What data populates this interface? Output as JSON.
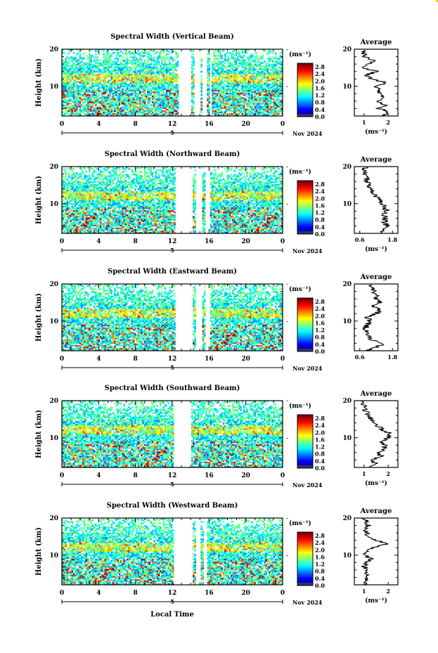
{
  "chart_data": [
    {
      "type": "heatmap",
      "title": "Spectral Width (Vertical Beam)",
      "ylabel": "Height (km)",
      "xlabel": "",
      "x_ticks": [
        "0",
        "4",
        "8",
        "12",
        "16",
        "20",
        "0"
      ],
      "date_marker": "5",
      "date_label": "Nov 2024",
      "y_ticks": [
        "20",
        "10"
      ],
      "ylim": [
        2,
        20
      ],
      "xlim": [
        0,
        24
      ],
      "colorbar": {
        "label": "(ms⁻¹)",
        "ticks": [
          "2.8",
          "2.4",
          "2.0",
          "1.6",
          "1.2",
          "0.8",
          "0.4",
          "0.0"
        ],
        "range": [
          0,
          3.0
        ]
      },
      "data_gaps_hours": [
        [
          12.7,
          14.0
        ],
        [
          14.4,
          15.0
        ],
        [
          15.2,
          15.7
        ],
        [
          16.1,
          16.3
        ]
      ],
      "profile": {
        "title": "Average",
        "xlabel": "(ms⁻¹)",
        "x_ticks": [
          "1",
          "2"
        ],
        "xlim": [
          0.6,
          2.4
        ],
        "heights": [
          2,
          3,
          4,
          5,
          6,
          7,
          8,
          9,
          10,
          11,
          12,
          13,
          14,
          15,
          16,
          17,
          18,
          19,
          20
        ],
        "values": [
          1.7,
          2.1,
          1.6,
          1.9,
          1.5,
          1.8,
          1.6,
          1.7,
          1.5,
          1.9,
          1.3,
          1.1,
          1.5,
          1.0,
          1.2,
          1.4,
          1.0,
          1.0,
          1.0
        ]
      }
    },
    {
      "type": "heatmap",
      "title": "Spectral Width (Northward Beam)",
      "ylabel": "Height (km)",
      "xlabel": "",
      "x_ticks": [
        "0",
        "4",
        "8",
        "12",
        "16",
        "20",
        "0"
      ],
      "date_marker": "5",
      "date_label": "Nov 2024",
      "y_ticks": [
        "20",
        "10"
      ],
      "ylim": [
        2,
        20
      ],
      "xlim": [
        0,
        24
      ],
      "colorbar": {
        "label": "(ms⁻¹)",
        "ticks": [
          "2.8",
          "2.4",
          "2.0",
          "1.6",
          "1.2",
          "0.8",
          "0.4",
          "0.0"
        ],
        "range": [
          0,
          3.0
        ]
      },
      "data_gaps_hours": [
        [
          12.3,
          14.2
        ],
        [
          14.6,
          15.2
        ],
        [
          15.6,
          16.1
        ]
      ],
      "profile": {
        "title": "Average",
        "xlabel": "(ms⁻¹)",
        "x_ticks": [
          "0.6",
          "1.8"
        ],
        "xlim": [
          0.4,
          2.0
        ],
        "heights": [
          2,
          3,
          4,
          5,
          6,
          7,
          8,
          9,
          10,
          11,
          12,
          13,
          14,
          15,
          16,
          17,
          18,
          19,
          20
        ],
        "values": [
          1.4,
          1.5,
          1.6,
          1.5,
          1.55,
          1.45,
          1.6,
          1.5,
          1.4,
          1.3,
          1.2,
          1.1,
          1.0,
          0.95,
          0.9,
          0.85,
          0.8,
          0.75,
          0.8
        ]
      }
    },
    {
      "type": "heatmap",
      "title": "Spectral Width (Eastward Beam)",
      "ylabel": "Height (km)",
      "xlabel": "",
      "x_ticks": [
        "0",
        "4",
        "8",
        "12",
        "16",
        "20",
        "0"
      ],
      "date_marker": "5",
      "date_label": "Nov 2024",
      "y_ticks": [
        "20",
        "10"
      ],
      "ylim": [
        2,
        20
      ],
      "xlim": [
        0,
        24
      ],
      "colorbar": {
        "label": "(ms⁻¹)",
        "ticks": [
          "2.8",
          "2.4",
          "2.0",
          "1.6",
          "1.2",
          "0.8",
          "0.4",
          "0.0"
        ],
        "range": [
          0,
          3.0
        ]
      },
      "data_gaps_hours": [
        [
          12.4,
          14.2
        ],
        [
          14.6,
          15.2
        ],
        [
          15.6,
          16.1
        ]
      ],
      "profile": {
        "title": "Average",
        "xlabel": "",
        "x_ticks": [
          "0.6",
          "1.8"
        ],
        "xlim": [
          0.4,
          2.0
        ],
        "heights": [
          2,
          3,
          4,
          5,
          6,
          7,
          8,
          9,
          10,
          11,
          12,
          13,
          14,
          15,
          16,
          17,
          18,
          19,
          20
        ],
        "values": [
          0.9,
          1.2,
          1.5,
          1.0,
          0.9,
          0.85,
          0.8,
          0.9,
          1.0,
          0.9,
          1.2,
          1.3,
          1.1,
          1.4,
          1.2,
          1.3,
          1.1,
          1.0,
          0.9
        ]
      }
    },
    {
      "type": "heatmap",
      "title": "Spectral Width (Southward Beam)",
      "ylabel": "Height (km)",
      "xlabel": "",
      "x_ticks": [
        "0",
        "4",
        "8",
        "12",
        "16",
        "20",
        "0"
      ],
      "date_marker": "5",
      "date_label": "Nov 2024",
      "y_ticks": [
        "20",
        "10"
      ],
      "ylim": [
        2,
        20
      ],
      "xlim": [
        0,
        24
      ],
      "colorbar": {
        "label": "(ms⁻¹)",
        "ticks": [
          "2.8",
          "2.4",
          "2.0",
          "1.6",
          "1.2",
          "0.8",
          "0.4",
          "0.0"
        ],
        "range": [
          0,
          3.0
        ]
      },
      "data_gaps_hours": [
        [
          12.2,
          14.0
        ]
      ],
      "profile": {
        "title": "Average",
        "xlabel": "(ms⁻¹)",
        "x_ticks": [
          "1",
          "2"
        ],
        "xlim": [
          0.6,
          2.4
        ],
        "heights": [
          2,
          3,
          4,
          5,
          6,
          7,
          8,
          9,
          10,
          11,
          12,
          13,
          14,
          15,
          16,
          17,
          18,
          19,
          20
        ],
        "values": [
          1.2,
          1.5,
          1.3,
          1.7,
          1.6,
          1.8,
          1.9,
          1.7,
          2.0,
          2.1,
          1.8,
          1.6,
          1.5,
          1.3,
          1.2,
          1.1,
          1.0,
          1.0,
          1.0
        ]
      }
    },
    {
      "type": "heatmap",
      "title": "Spectral Width (Westward Beam)",
      "ylabel": "Height (km)",
      "xlabel": "Local Time",
      "x_ticks": [
        "0",
        "4",
        "8",
        "12",
        "16",
        "20",
        "0"
      ],
      "date_marker": "5",
      "date_label": "Nov 2024",
      "y_ticks": [
        "20",
        "10"
      ],
      "ylim": [
        2,
        20
      ],
      "xlim": [
        0,
        24
      ],
      "colorbar": {
        "label": "(ms⁻¹)",
        "ticks": [
          "2.8",
          "2.4",
          "2.0",
          "1.6",
          "1.2",
          "0.8",
          "0.4",
          "0.0"
        ],
        "range": [
          0,
          3.0
        ]
      },
      "data_gaps_hours": [
        [
          12.2,
          14.2
        ],
        [
          14.6,
          15.0
        ],
        [
          15.5,
          15.8
        ]
      ],
      "profile": {
        "title": "Average",
        "xlabel": "(ms⁻¹)",
        "x_ticks": [
          "1",
          "2"
        ],
        "xlim": [
          0.6,
          2.4
        ],
        "heights": [
          2,
          3,
          4,
          5,
          6,
          7,
          8,
          9,
          10,
          11,
          12,
          13,
          14,
          15,
          16,
          17,
          18,
          19,
          20
        ],
        "values": [
          1.1,
          1.0,
          1.2,
          1.0,
          1.1,
          1.0,
          1.1,
          1.3,
          1.0,
          1.1,
          1.3,
          2.0,
          1.5,
          1.2,
          1.1,
          1.0,
          1.2,
          1.1,
          1.0
        ]
      }
    }
  ]
}
